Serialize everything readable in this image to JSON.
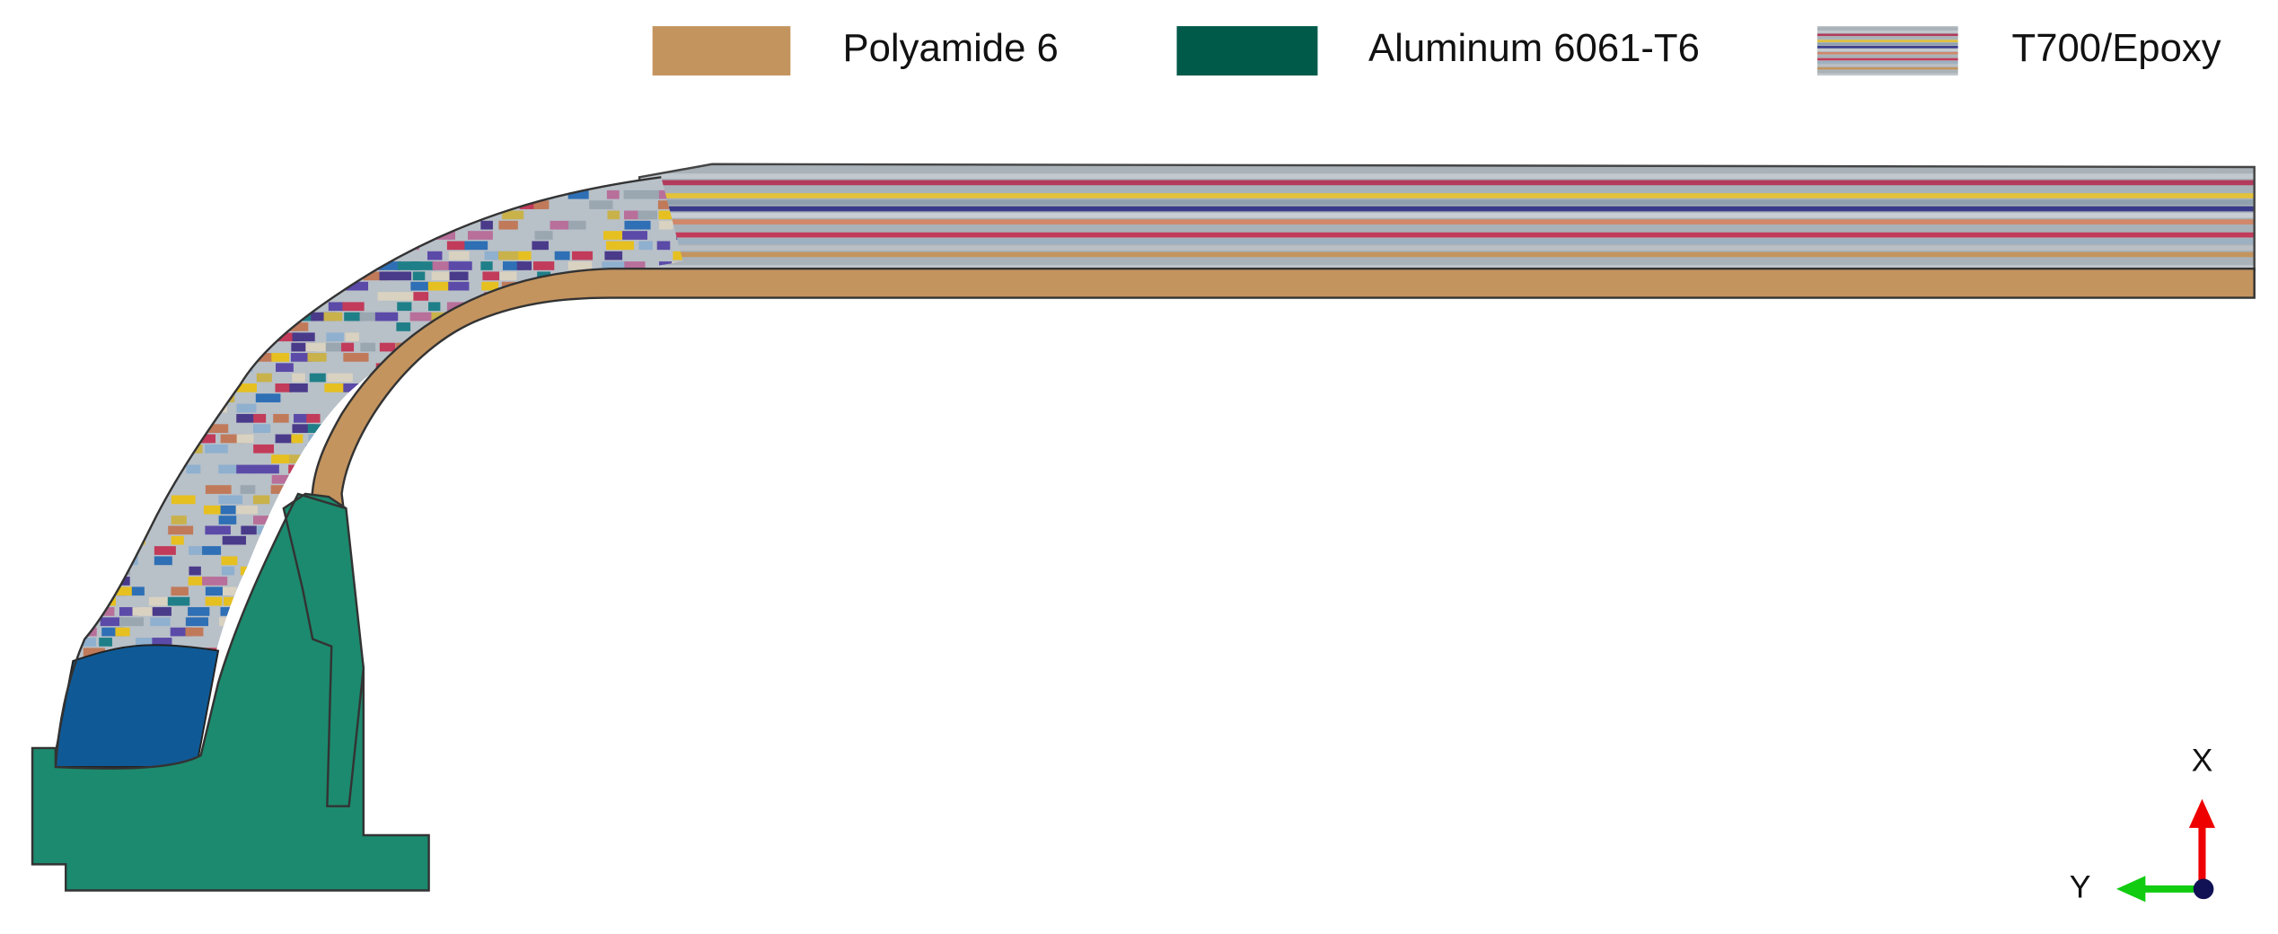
{
  "legend": [
    {
      "label": "Polyamide 6"
    },
    {
      "label": "Aluminum 6061-T6"
    },
    {
      "label": "T700/Epoxy"
    }
  ],
  "axes": {
    "x": "X",
    "y": "Y"
  }
}
